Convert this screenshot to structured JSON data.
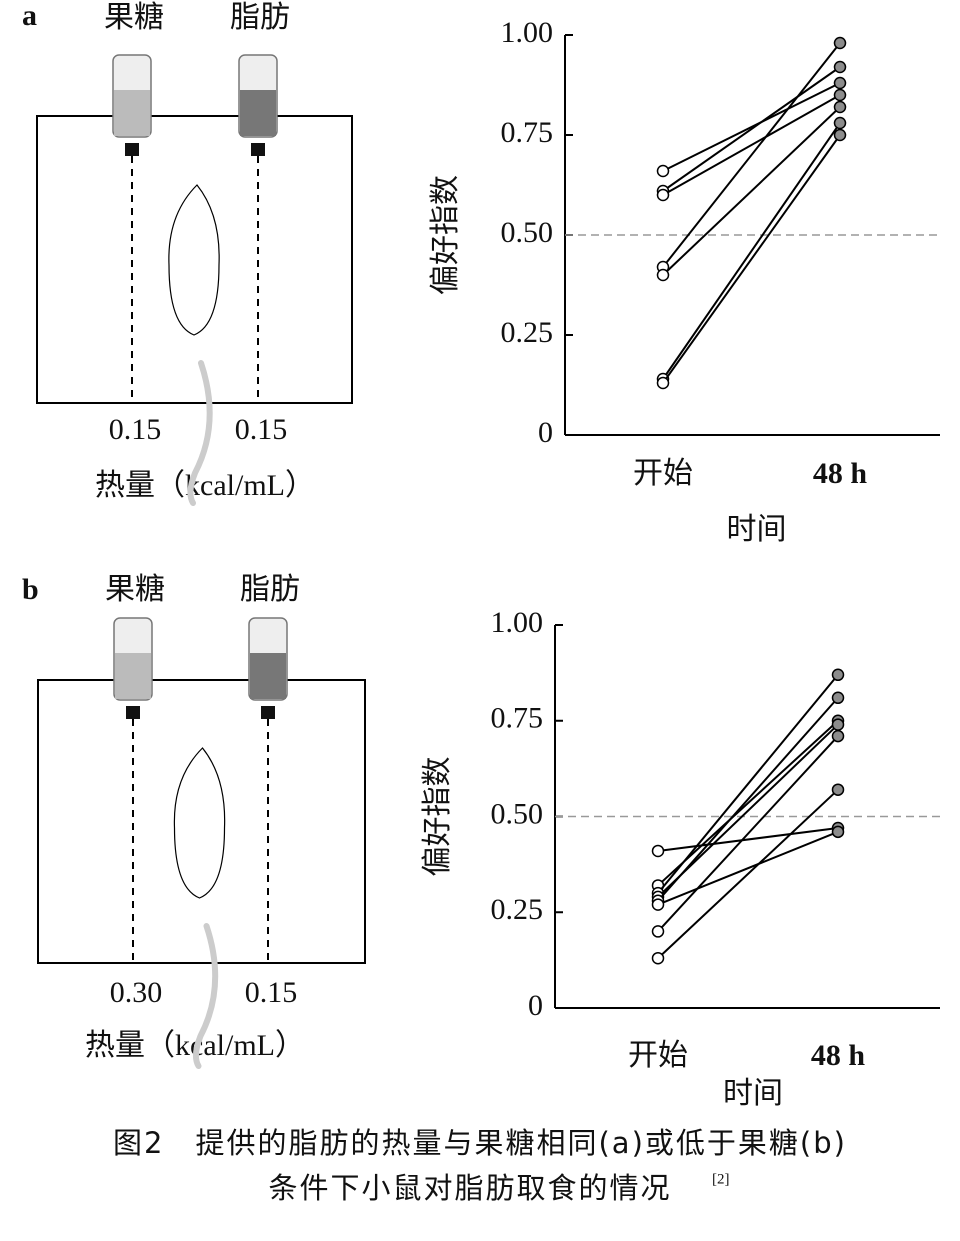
{
  "panels": [
    {
      "label": "a",
      "bottles": [
        "果糖",
        "脂肪"
      ],
      "calories": [
        "0.15",
        "0.15"
      ],
      "calorie_label": "热量（kcal/mL）"
    },
    {
      "label": "b",
      "bottles": [
        "果糖",
        "脂肪"
      ],
      "calories": [
        "0.30",
        "0.15"
      ],
      "calorie_label": "热量（kcal/mL）"
    }
  ],
  "chart_data": [
    {
      "type": "line",
      "ylabel": "偏好指数",
      "xlabel": "时间",
      "categories": [
        "开始",
        "48 h"
      ],
      "series": [
        {
          "color": "#000000",
          "values": [
            0.66,
            0.88
          ]
        },
        {
          "color": "#000000",
          "values": [
            0.61,
            0.92
          ]
        },
        {
          "color": "#000000",
          "values": [
            0.6,
            0.85
          ]
        },
        {
          "color": "#000000",
          "values": [
            0.42,
            0.98
          ]
        },
        {
          "color": "#000000",
          "values": [
            0.4,
            0.82
          ]
        },
        {
          "color": "#000000",
          "values": [
            0.14,
            0.78
          ]
        },
        {
          "color": "#000000",
          "values": [
            0.13,
            0.75
          ]
        }
      ],
      "marker_colors": [
        "#ffffff",
        "#8c8c8c"
      ],
      "ylim": [
        0,
        1
      ],
      "yticks": [
        0,
        0.25,
        {
          "value": 0.5,
          "label": "0.50"
        },
        0.75,
        {
          "value": 1,
          "label": "1.00"
        }
      ],
      "reference_line": 0.5
    },
    {
      "type": "line",
      "ylabel": "偏好指数",
      "xlabel": "时间",
      "categories": [
        "开始",
        "48 h"
      ],
      "series": [
        {
          "color": "#000000",
          "values": [
            0.41,
            0.47
          ]
        },
        {
          "color": "#000000",
          "values": [
            0.32,
            0.75
          ]
        },
        {
          "color": "#000000",
          "values": [
            0.3,
            0.87
          ]
        },
        {
          "color": "#000000",
          "values": [
            0.29,
            0.74
          ]
        },
        {
          "color": "#000000",
          "values": [
            0.28,
            0.81
          ]
        },
        {
          "color": "#000000",
          "values": [
            0.27,
            0.46
          ]
        },
        {
          "color": "#000000",
          "values": [
            0.2,
            0.71
          ]
        },
        {
          "color": "#000000",
          "values": [
            0.13,
            0.57
          ]
        }
      ],
      "marker_colors": [
        "#ffffff",
        "#8c8c8c"
      ],
      "ylim": [
        0,
        1
      ],
      "yticks": [
        0,
        0.25,
        {
          "value": 0.5,
          "label": "0.50"
        },
        0.75,
        {
          "value": 1,
          "label": "1.00"
        }
      ],
      "reference_line": 0.5
    }
  ],
  "caption": {
    "line1": "图2　提供的脂肪的热量与果糖相同(a)或低于果糖(b)",
    "line2": "条件下小鼠对脂肪取食的情况",
    "ref": "[2]"
  }
}
